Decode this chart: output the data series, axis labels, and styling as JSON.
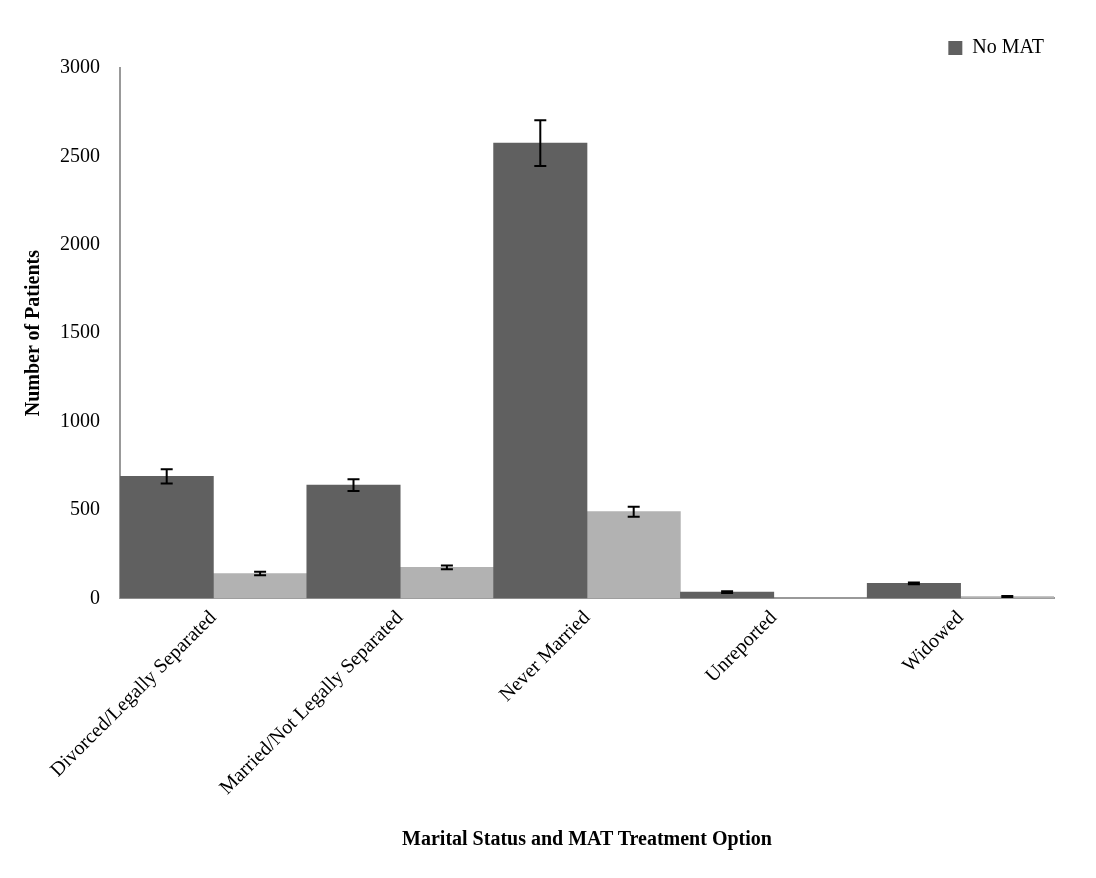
{
  "chart_data": {
    "type": "bar",
    "xlabel": "Marital Status and MAT Treatment Option",
    "ylabel": "Number of Patients",
    "categories": [
      "Divorced/Legally Separated",
      "Married/Not Legally Separated",
      "Never Married",
      "Unreported",
      "Widowed"
    ],
    "series": [
      {
        "name": "No MAT",
        "color": "#606060",
        "values": [
          690,
          640,
          2575,
          35,
          85
        ],
        "errors": [
          40,
          33,
          130,
          5,
          5
        ]
      },
      {
        "color": "#b2b2b2",
        "values": [
          140,
          175,
          490,
          null,
          10
        ],
        "errors": [
          10,
          10,
          28,
          null,
          3
        ]
      }
    ],
    "ylim": [
      0,
      3000
    ],
    "yticks": [
      0,
      500,
      1000,
      1500,
      2000,
      2500,
      3000
    ],
    "grid": false,
    "legend": "top right"
  }
}
